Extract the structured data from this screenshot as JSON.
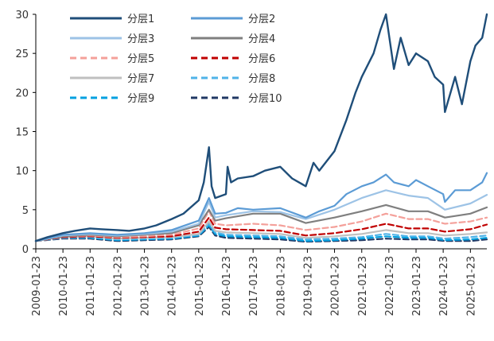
{
  "chart_data": {
    "type": "line",
    "title": "",
    "xlabel": "",
    "ylabel": "",
    "ylim": [
      0,
      30
    ],
    "y_ticks": [
      0,
      5,
      10,
      15,
      20,
      25,
      30
    ],
    "x_range": [
      "2009-01-23",
      "2025-09-01"
    ],
    "x_tick_labels": [
      "2009-01-23",
      "2010-01-23",
      "2011-01-23",
      "2012-01-23",
      "2013-01-23",
      "2014-01-23",
      "2015-01-23",
      "2016-01-23",
      "2017-01-23",
      "2018-01-23",
      "2019-01-23",
      "2020-01-23",
      "2021-01-23",
      "2022-01-23",
      "2023-01-23",
      "2024-01-23",
      "2025-01-23"
    ],
    "grid": false,
    "legend_position": "top-left",
    "series": [
      {
        "name": "分层1",
        "color": "#1f4e79",
        "dash": "solid",
        "x": [
          "2009-01-23",
          "2009-07-01",
          "2010-01-23",
          "2010-07-01",
          "2011-01-23",
          "2011-07-01",
          "2012-01-23",
          "2012-07-01",
          "2013-01-23",
          "2013-07-01",
          "2014-01-23",
          "2014-07-01",
          "2015-01-23",
          "2015-04-01",
          "2015-06-10",
          "2015-07-15",
          "2015-09-01",
          "2016-01-23",
          "2016-02-15",
          "2016-04-01",
          "2016-07-01",
          "2017-01-23",
          "2017-07-01",
          "2018-01-23",
          "2018-07-01",
          "2019-01-01",
          "2019-04-15",
          "2019-07-01",
          "2020-01-23",
          "2020-07-01",
          "2020-11-01",
          "2021-01-23",
          "2021-07-01",
          "2021-10-01",
          "2021-12-15",
          "2022-04-01",
          "2022-07-01",
          "2022-10-15",
          "2023-01-23",
          "2023-07-01",
          "2023-10-01",
          "2024-01-23",
          "2024-02-15",
          "2024-07-01",
          "2024-10-01",
          "2025-01-23",
          "2025-04-01",
          "2025-07-01",
          "2025-09-01"
        ],
        "values": [
          1.0,
          1.5,
          2.0,
          2.3,
          2.6,
          2.5,
          2.4,
          2.3,
          2.6,
          3.0,
          3.8,
          4.5,
          6.2,
          8.5,
          13.0,
          8.0,
          6.5,
          7.0,
          10.5,
          8.5,
          9.0,
          9.3,
          10.0,
          10.5,
          9.0,
          8.0,
          11.0,
          10.0,
          12.5,
          16.5,
          20.0,
          22.0,
          25.0,
          28.0,
          30.0,
          23.0,
          27.0,
          23.5,
          25.0,
          24.0,
          22.0,
          21.0,
          17.5,
          22.0,
          18.5,
          24.0,
          26.0,
          27.0,
          30.0
        ]
      },
      {
        "name": "分层2",
        "color": "#5b9bd5",
        "dash": "solid",
        "x": [
          "2009-01-23",
          "2010-01-23",
          "2011-01-23",
          "2012-01-23",
          "2013-01-23",
          "2014-01-23",
          "2015-01-23",
          "2015-06-10",
          "2015-09-01",
          "2016-01-23",
          "2016-07-01",
          "2017-01-23",
          "2018-01-23",
          "2019-01-01",
          "2019-07-01",
          "2020-01-23",
          "2020-07-01",
          "2021-01-23",
          "2021-07-01",
          "2021-12-15",
          "2022-04-01",
          "2022-10-15",
          "2023-01-23",
          "2023-07-01",
          "2024-01-23",
          "2024-02-15",
          "2024-07-01",
          "2025-01-23",
          "2025-07-01",
          "2025-09-01"
        ],
        "values": [
          1.0,
          1.8,
          2.0,
          1.8,
          2.0,
          2.4,
          3.6,
          6.5,
          4.5,
          4.6,
          5.2,
          5.0,
          5.2,
          4.0,
          4.8,
          5.5,
          7.0,
          8.0,
          8.5,
          9.5,
          8.5,
          8.0,
          8.8,
          8.0,
          7.0,
          6.0,
          7.5,
          7.5,
          8.5,
          9.7
        ]
      },
      {
        "name": "分层3",
        "color": "#9dc3e6",
        "dash": "solid",
        "x": [
          "2009-01-23",
          "2010-01-23",
          "2011-01-23",
          "2012-01-23",
          "2013-01-23",
          "2014-01-23",
          "2015-01-23",
          "2015-06-10",
          "2015-09-01",
          "2016-01-23",
          "2017-01-23",
          "2018-01-23",
          "2019-01-01",
          "2020-01-23",
          "2021-01-23",
          "2021-12-15",
          "2022-10-15",
          "2023-07-01",
          "2024-02-15",
          "2025-01-23",
          "2025-09-01"
        ],
        "values": [
          1.0,
          1.7,
          1.9,
          1.7,
          1.9,
          2.2,
          3.2,
          6.0,
          4.0,
          4.3,
          4.8,
          4.7,
          3.8,
          5.0,
          6.5,
          7.5,
          6.8,
          6.5,
          5.0,
          5.8,
          6.9
        ]
      },
      {
        "name": "分层4",
        "color": "#7f7f7f",
        "dash": "solid",
        "x": [
          "2009-01-23",
          "2010-01-23",
          "2011-01-23",
          "2012-01-23",
          "2013-01-23",
          "2014-01-23",
          "2015-01-23",
          "2015-06-10",
          "2015-09-01",
          "2016-01-23",
          "2017-01-23",
          "2018-01-23",
          "2019-01-01",
          "2020-01-23",
          "2021-01-23",
          "2021-12-15",
          "2022-10-15",
          "2023-07-01",
          "2024-02-15",
          "2025-01-23",
          "2025-09-01"
        ],
        "values": [
          1.0,
          1.6,
          1.8,
          1.6,
          1.8,
          2.0,
          3.0,
          5.0,
          3.6,
          3.9,
          4.5,
          4.5,
          3.3,
          4.0,
          4.8,
          5.6,
          4.8,
          4.8,
          4.0,
          4.5,
          5.3
        ]
      },
      {
        "name": "分层5",
        "color": "#f4a09a",
        "dash": "dashed",
        "x": [
          "2009-01-23",
          "2010-01-23",
          "2011-01-23",
          "2012-01-23",
          "2013-01-23",
          "2014-01-23",
          "2015-01-23",
          "2015-06-10",
          "2015-09-01",
          "2016-01-23",
          "2017-01-23",
          "2018-01-23",
          "2019-01-01",
          "2020-01-23",
          "2021-01-23",
          "2021-12-15",
          "2022-10-15",
          "2023-07-01",
          "2024-02-15",
          "2025-01-23",
          "2025-09-01"
        ],
        "values": [
          1.0,
          1.6,
          1.7,
          1.5,
          1.6,
          1.8,
          2.6,
          4.8,
          3.2,
          3.0,
          3.2,
          3.0,
          2.4,
          2.8,
          3.5,
          4.5,
          3.8,
          3.8,
          3.2,
          3.5,
          4.0
        ]
      },
      {
        "name": "分层6",
        "color": "#c00000",
        "dash": "dashed",
        "x": [
          "2009-01-23",
          "2010-01-23",
          "2011-01-23",
          "2012-01-23",
          "2013-01-23",
          "2014-01-23",
          "2015-01-23",
          "2015-06-10",
          "2015-09-01",
          "2016-01-23",
          "2017-01-23",
          "2018-01-23",
          "2019-01-01",
          "2020-01-23",
          "2021-01-23",
          "2021-12-15",
          "2022-10-15",
          "2023-07-01",
          "2024-02-15",
          "2025-01-23",
          "2025-09-01"
        ],
        "values": [
          1.0,
          1.5,
          1.6,
          1.4,
          1.5,
          1.6,
          2.2,
          4.0,
          2.7,
          2.5,
          2.4,
          2.3,
          1.7,
          2.0,
          2.5,
          3.2,
          2.6,
          2.6,
          2.2,
          2.5,
          3.1
        ]
      },
      {
        "name": "分层7",
        "color": "#bfbfbf",
        "dash": "solid",
        "x": [
          "2009-01-23",
          "2010-01-23",
          "2011-01-23",
          "2012-01-23",
          "2013-01-23",
          "2014-01-23",
          "2015-01-23",
          "2015-06-10",
          "2015-09-01",
          "2016-01-23",
          "2017-01-23",
          "2018-01-23",
          "2019-01-01",
          "2020-01-23",
          "2021-01-23",
          "2021-12-15",
          "2022-10-15",
          "2023-07-01",
          "2024-02-15",
          "2025-01-23",
          "2025-09-01"
        ],
        "values": [
          1.0,
          1.5,
          1.6,
          1.3,
          1.4,
          1.5,
          1.9,
          3.5,
          2.3,
          2.1,
          2.0,
          1.9,
          1.4,
          1.6,
          1.9,
          2.4,
          2.0,
          2.0,
          1.7,
          1.9,
          2.1
        ]
      },
      {
        "name": "分层8",
        "color": "#4fb3e8",
        "dash": "dashed",
        "x": [
          "2009-01-23",
          "2010-01-23",
          "2011-01-23",
          "2012-01-23",
          "2013-01-23",
          "2014-01-23",
          "2015-01-23",
          "2015-06-10",
          "2015-09-01",
          "2016-01-23",
          "2017-01-23",
          "2018-01-23",
          "2019-01-01",
          "2020-01-23",
          "2021-01-23",
          "2021-12-15",
          "2022-10-15",
          "2023-07-01",
          "2024-02-15",
          "2025-01-23",
          "2025-09-01"
        ],
        "values": [
          1.0,
          1.4,
          1.5,
          1.2,
          1.3,
          1.4,
          1.8,
          3.2,
          2.1,
          1.8,
          1.7,
          1.6,
          1.2,
          1.3,
          1.5,
          1.9,
          1.6,
          1.6,
          1.3,
          1.5,
          1.7
        ]
      },
      {
        "name": "分层9",
        "color": "#00a0e0",
        "dash": "dashed",
        "x": [
          "2009-01-23",
          "2010-01-23",
          "2011-01-23",
          "2012-01-23",
          "2013-01-23",
          "2014-01-23",
          "2015-01-23",
          "2015-06-10",
          "2015-09-01",
          "2016-01-23",
          "2017-01-23",
          "2018-01-23",
          "2019-01-01",
          "2020-01-23",
          "2021-01-23",
          "2021-12-15",
          "2022-10-15",
          "2023-07-01",
          "2024-02-15",
          "2025-01-23",
          "2025-09-01"
        ],
        "values": [
          1.0,
          1.4,
          1.4,
          1.1,
          1.2,
          1.3,
          1.7,
          3.0,
          1.9,
          1.6,
          1.5,
          1.4,
          1.0,
          1.1,
          1.3,
          1.6,
          1.4,
          1.4,
          1.1,
          1.2,
          1.4
        ]
      },
      {
        "name": "分层10",
        "color": "#203864",
        "dash": "dashed",
        "x": [
          "2009-01-23",
          "2010-01-23",
          "2011-01-23",
          "2012-01-23",
          "2013-01-23",
          "2014-01-23",
          "2015-01-23",
          "2015-06-10",
          "2015-09-01",
          "2016-01-23",
          "2017-01-23",
          "2018-01-23",
          "2019-01-01",
          "2020-01-23",
          "2021-01-23",
          "2021-12-15",
          "2022-10-15",
          "2023-07-01",
          "2024-02-15",
          "2025-01-23",
          "2025-09-01"
        ],
        "values": [
          1.0,
          1.3,
          1.3,
          1.0,
          1.1,
          1.2,
          1.6,
          2.8,
          1.7,
          1.4,
          1.3,
          1.2,
          0.9,
          1.0,
          1.1,
          1.3,
          1.2,
          1.2,
          1.0,
          1.0,
          1.2
        ]
      }
    ]
  }
}
